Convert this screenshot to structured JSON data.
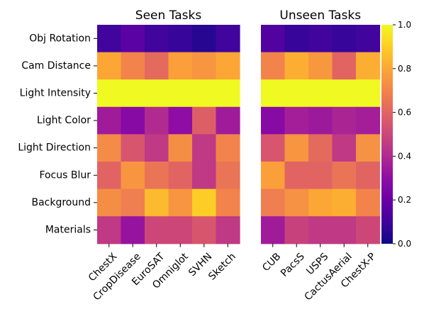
{
  "chart_data": {
    "type": "heatmap",
    "colormap": "plasma",
    "vmin": 0.0,
    "vmax": 1.0,
    "rows": [
      "Obj Rotation",
      "Cam Distance",
      "Light Intensity",
      "Light Color",
      "Light Direction",
      "Focus Blur",
      "Background",
      "Materials"
    ],
    "panels": [
      {
        "title": "Seen Tasks",
        "columns": [
          "ChestX",
          "CropDisease",
          "EuroSAT",
          "Omniglot",
          "SVHN",
          "Sketch"
        ],
        "values": [
          [
            0.1,
            0.16,
            0.1,
            0.08,
            0.05,
            0.1
          ],
          [
            0.8,
            0.7,
            0.62,
            0.78,
            0.75,
            0.8
          ],
          [
            1.0,
            1.0,
            1.0,
            1.0,
            1.0,
            1.0
          ],
          [
            0.35,
            0.28,
            0.4,
            0.3,
            0.58,
            0.35
          ],
          [
            0.72,
            0.55,
            0.45,
            0.73,
            0.45,
            0.7
          ],
          [
            0.6,
            0.75,
            0.65,
            0.6,
            0.45,
            0.65
          ],
          [
            0.73,
            0.68,
            0.85,
            0.75,
            0.9,
            0.7
          ],
          [
            0.45,
            0.32,
            0.5,
            0.5,
            0.55,
            0.45
          ]
        ]
      },
      {
        "title": "Unseen Tasks",
        "columns": [
          "CUB",
          "PacsS",
          "USPS",
          "CactusAerial",
          "ChestX-P"
        ],
        "values": [
          [
            0.14,
            0.08,
            0.1,
            0.08,
            0.1
          ],
          [
            0.7,
            0.82,
            0.76,
            0.6,
            0.82
          ],
          [
            1.0,
            1.0,
            1.0,
            1.0,
            1.0
          ],
          [
            0.28,
            0.36,
            0.34,
            0.38,
            0.36
          ],
          [
            0.55,
            0.75,
            0.62,
            0.45,
            0.74
          ],
          [
            0.78,
            0.6,
            0.6,
            0.65,
            0.6
          ],
          [
            0.68,
            0.74,
            0.8,
            0.82,
            0.7
          ],
          [
            0.35,
            0.48,
            0.45,
            0.45,
            0.5
          ]
        ]
      }
    ],
    "colorbar": {
      "ticks": [
        "0.0",
        "0.2",
        "0.4",
        "0.6",
        "0.8",
        "1.0"
      ]
    }
  }
}
